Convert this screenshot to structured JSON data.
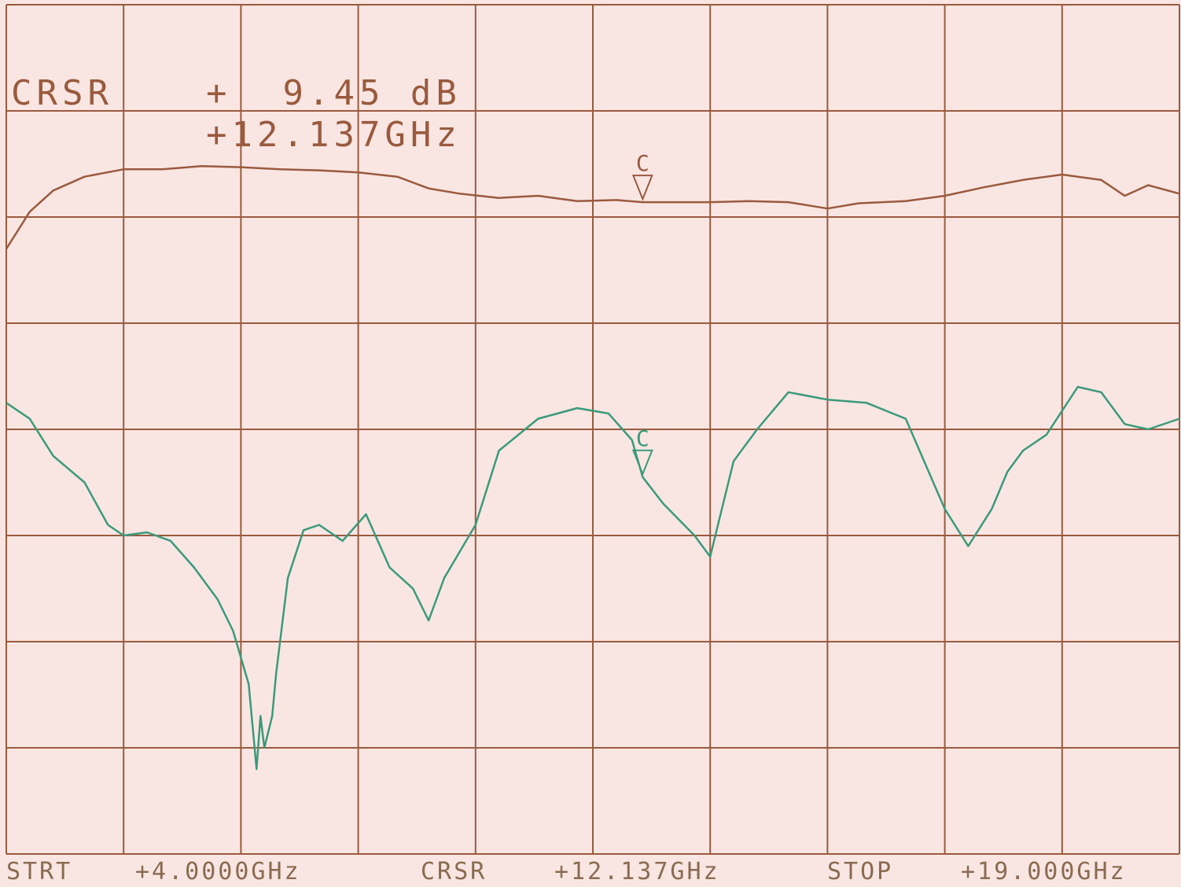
{
  "readout": {
    "label": "CRSR",
    "amplitude": "+  9.45 dB",
    "frequency": "+12.137GHz"
  },
  "footer": {
    "start_label": "STRT",
    "start_value": "+4.0000GHz",
    "cursor_label": "CRSR",
    "cursor_value": "+12.137GHz",
    "stop_label": "STOP",
    "stop_value": "+19.000GHz"
  },
  "colors": {
    "background": "#f9e6e3",
    "grid": "#9a5a3e",
    "trace_upper": "#9a5a3e",
    "trace_lower": "#3a9a7a"
  },
  "chart_data": {
    "type": "line",
    "x_unit": "GHz",
    "xlim": [
      4.0,
      19.0
    ],
    "ylim": [
      -8.0,
      0.0
    ],
    "grid": true,
    "divisions": {
      "x": 10,
      "y": 8
    },
    "cursor": {
      "x": 12.137,
      "marker_label": "C"
    },
    "series": [
      {
        "x": [
          4.0,
          4.3,
          4.6,
          5.0,
          5.5,
          6.0,
          6.5,
          7.0,
          7.5,
          8.0,
          8.5,
          9.0,
          9.4,
          9.8,
          10.3,
          10.8,
          11.3,
          11.8,
          12.137,
          12.5,
          13.0,
          13.5,
          14.0,
          14.5,
          14.9,
          15.2,
          15.5,
          16.0,
          16.5,
          17.0,
          17.5,
          18.0,
          18.3,
          18.6,
          19.0
        ],
        "y": [
          -2.3,
          -1.95,
          -1.75,
          -1.62,
          -1.55,
          -1.55,
          -1.52,
          -1.53,
          -1.55,
          -1.56,
          -1.58,
          -1.62,
          -1.73,
          -1.78,
          -1.82,
          -1.8,
          -1.85,
          -1.84,
          -1.86,
          -1.86,
          -1.86,
          -1.85,
          -1.86,
          -1.92,
          -1.87,
          -1.86,
          -1.85,
          -1.8,
          -1.72,
          -1.65,
          -1.6,
          -1.65,
          -1.8,
          -1.7,
          -1.78
        ]
      },
      {
        "x": [
          4.0,
          4.3,
          4.6,
          5.0,
          5.3,
          5.5,
          5.8,
          6.1,
          6.4,
          6.7,
          6.9,
          7.1,
          7.15,
          7.2,
          7.25,
          7.3,
          7.4,
          7.45,
          7.6,
          7.8,
          8.0,
          8.3,
          8.6,
          8.9,
          9.2,
          9.4,
          9.5,
          9.6,
          9.8,
          10.0,
          10.3,
          10.8,
          11.3,
          11.7,
          12.0,
          12.137,
          12.4,
          12.8,
          13.0,
          13.1,
          13.3,
          13.6,
          14.0,
          14.5,
          15.0,
          15.5,
          16.0,
          16.3,
          16.6,
          16.8,
          17.0,
          17.3,
          17.7,
          18.0,
          18.3,
          18.6,
          19.0
        ],
        "y": [
          -3.75,
          -3.9,
          -4.25,
          -4.5,
          -4.9,
          -5.0,
          -4.97,
          -5.05,
          -5.3,
          -5.6,
          -5.9,
          -6.4,
          -6.8,
          -7.2,
          -6.7,
          -7.0,
          -6.7,
          -6.3,
          -5.4,
          -4.95,
          -4.9,
          -5.05,
          -4.8,
          -5.3,
          -5.5,
          -5.8,
          -5.6,
          -5.4,
          -5.15,
          -4.9,
          -4.2,
          -3.9,
          -3.8,
          -3.85,
          -4.1,
          -4.45,
          -4.7,
          -5.0,
          -5.2,
          -4.9,
          -4.3,
          -4.0,
          -3.65,
          -3.72,
          -3.75,
          -3.9,
          -4.75,
          -5.1,
          -4.75,
          -4.4,
          -4.2,
          -4.05,
          -3.6,
          -3.65,
          -3.95,
          -4.0,
          -3.9
        ]
      }
    ]
  }
}
